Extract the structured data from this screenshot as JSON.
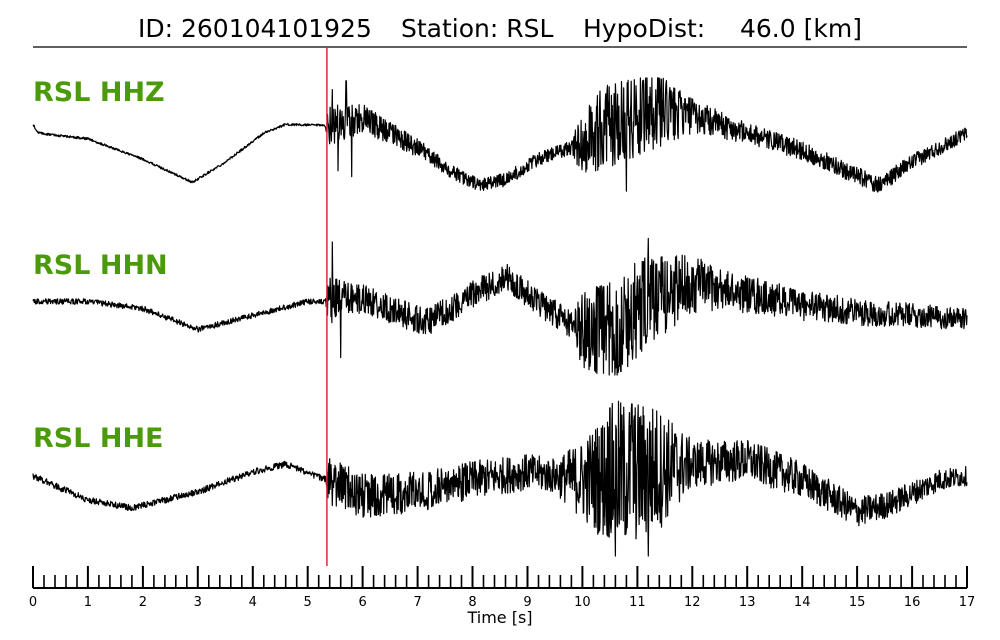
{
  "header": {
    "id": "ID: 260104101925",
    "station": "Station: RSL",
    "hypodist_label": "HypoDist:",
    "hypodist_value": "46.0 [km]"
  },
  "chart_data": {
    "type": "line",
    "xlabel": "Time [s]",
    "xlim": [
      0,
      17
    ],
    "x_ticks": [
      0,
      1,
      2,
      3,
      4,
      5,
      6,
      7,
      8,
      9,
      10,
      11,
      12,
      13,
      14,
      15,
      16,
      17
    ],
    "x_minor_step": 0.2,
    "pick_time": 5.35,
    "colors": {
      "trace": "#000000",
      "label": "#4a9a0a",
      "pick": "#e8262a"
    },
    "series": [
      {
        "name": "RSL HHZ",
        "baseline": [
          [
            0,
            0.2
          ],
          [
            0.1,
            0.05
          ],
          [
            1,
            -0.05
          ],
          [
            2,
            -0.4
          ],
          [
            2.9,
            -0.8
          ],
          [
            3.5,
            -0.45
          ],
          [
            4.2,
            0.05
          ],
          [
            4.6,
            0.2
          ],
          [
            5.35,
            0.18
          ],
          [
            6,
            0.3
          ],
          [
            6.5,
            0.05
          ],
          [
            7,
            -0.2
          ],
          [
            7.6,
            -0.6
          ],
          [
            8.1,
            -0.85
          ],
          [
            8.6,
            -0.75
          ],
          [
            9.2,
            -0.4
          ],
          [
            9.8,
            -0.2
          ],
          [
            10.5,
            0.2
          ],
          [
            11.2,
            0.45
          ],
          [
            12,
            0.35
          ],
          [
            13,
            0.05
          ],
          [
            14,
            -0.25
          ],
          [
            14.8,
            -0.6
          ],
          [
            15.4,
            -0.85
          ],
          [
            16,
            -0.45
          ],
          [
            17,
            0.05
          ]
        ],
        "noise": [
          [
            0,
            0.02
          ],
          [
            5.3,
            0.02
          ],
          [
            5.4,
            0.35
          ],
          [
            6.0,
            0.25
          ],
          [
            7.5,
            0.12
          ],
          [
            9.8,
            0.12
          ],
          [
            10.0,
            0.6
          ],
          [
            10.6,
            0.75
          ],
          [
            11.3,
            0.7
          ],
          [
            12.0,
            0.3
          ],
          [
            13,
            0.18
          ],
          [
            17,
            0.12
          ]
        ],
        "spikes": [
          [
            5.45,
            0.8
          ],
          [
            5.55,
            -0.6
          ],
          [
            5.7,
            0.95
          ],
          [
            5.8,
            -0.7
          ],
          [
            10.6,
            0.9
          ],
          [
            10.8,
            -0.95
          ],
          [
            11.1,
            0.95
          ]
        ]
      },
      {
        "name": "RSL HHN",
        "baseline": [
          [
            0,
            0.05
          ],
          [
            1,
            0.05
          ],
          [
            2,
            -0.05
          ],
          [
            3,
            -0.35
          ],
          [
            4,
            -0.15
          ],
          [
            5,
            0.05
          ],
          [
            5.35,
            0.05
          ],
          [
            6,
            0.1
          ],
          [
            6.6,
            -0.1
          ],
          [
            7.2,
            -0.25
          ],
          [
            8,
            0.15
          ],
          [
            8.6,
            0.4
          ],
          [
            9.2,
            0.05
          ],
          [
            9.8,
            -0.3
          ],
          [
            10.5,
            -0.4
          ],
          [
            11.2,
            0.05
          ],
          [
            12,
            0.3
          ],
          [
            13,
            0.15
          ],
          [
            14,
            0.0
          ],
          [
            15,
            -0.1
          ],
          [
            16,
            -0.15
          ],
          [
            17,
            -0.2
          ]
        ],
        "noise": [
          [
            0,
            0.04
          ],
          [
            5.3,
            0.04
          ],
          [
            5.4,
            0.35
          ],
          [
            6.0,
            0.2
          ],
          [
            9.8,
            0.2
          ],
          [
            10.0,
            0.55
          ],
          [
            10.7,
            0.8
          ],
          [
            11.5,
            0.55
          ],
          [
            12.5,
            0.3
          ],
          [
            14,
            0.22
          ],
          [
            17,
            0.15
          ]
        ],
        "spikes": [
          [
            5.45,
            0.9
          ],
          [
            5.6,
            -0.75
          ],
          [
            10.7,
            -0.95
          ],
          [
            11.2,
            0.95
          ]
        ]
      },
      {
        "name": "RSL HHE",
        "baseline": [
          [
            0,
            0.05
          ],
          [
            1,
            -0.25
          ],
          [
            1.8,
            -0.35
          ],
          [
            3,
            -0.15
          ],
          [
            4,
            0.1
          ],
          [
            4.6,
            0.2
          ],
          [
            5.35,
            0.0
          ],
          [
            6,
            -0.2
          ],
          [
            7,
            -0.15
          ],
          [
            8,
            0.0
          ],
          [
            9,
            0.1
          ],
          [
            10,
            0.0
          ],
          [
            11,
            0.1
          ],
          [
            12,
            0.2
          ],
          [
            13,
            0.25
          ],
          [
            14,
            0.0
          ],
          [
            15,
            -0.4
          ],
          [
            15.6,
            -0.3
          ],
          [
            16.5,
            0.0
          ],
          [
            17,
            0.05
          ]
        ],
        "noise": [
          [
            0,
            0.04
          ],
          [
            5.3,
            0.04
          ],
          [
            5.4,
            0.3
          ],
          [
            7,
            0.25
          ],
          [
            9.5,
            0.22
          ],
          [
            10.0,
            0.5
          ],
          [
            10.6,
            0.95
          ],
          [
            11.3,
            0.85
          ],
          [
            12.0,
            0.3
          ],
          [
            14,
            0.22
          ],
          [
            17,
            0.12
          ]
        ],
        "spikes": [
          [
            10.5,
            0.9
          ],
          [
            10.6,
            -0.95
          ],
          [
            10.9,
            0.95
          ],
          [
            11.2,
            -0.95
          ]
        ]
      }
    ]
  }
}
